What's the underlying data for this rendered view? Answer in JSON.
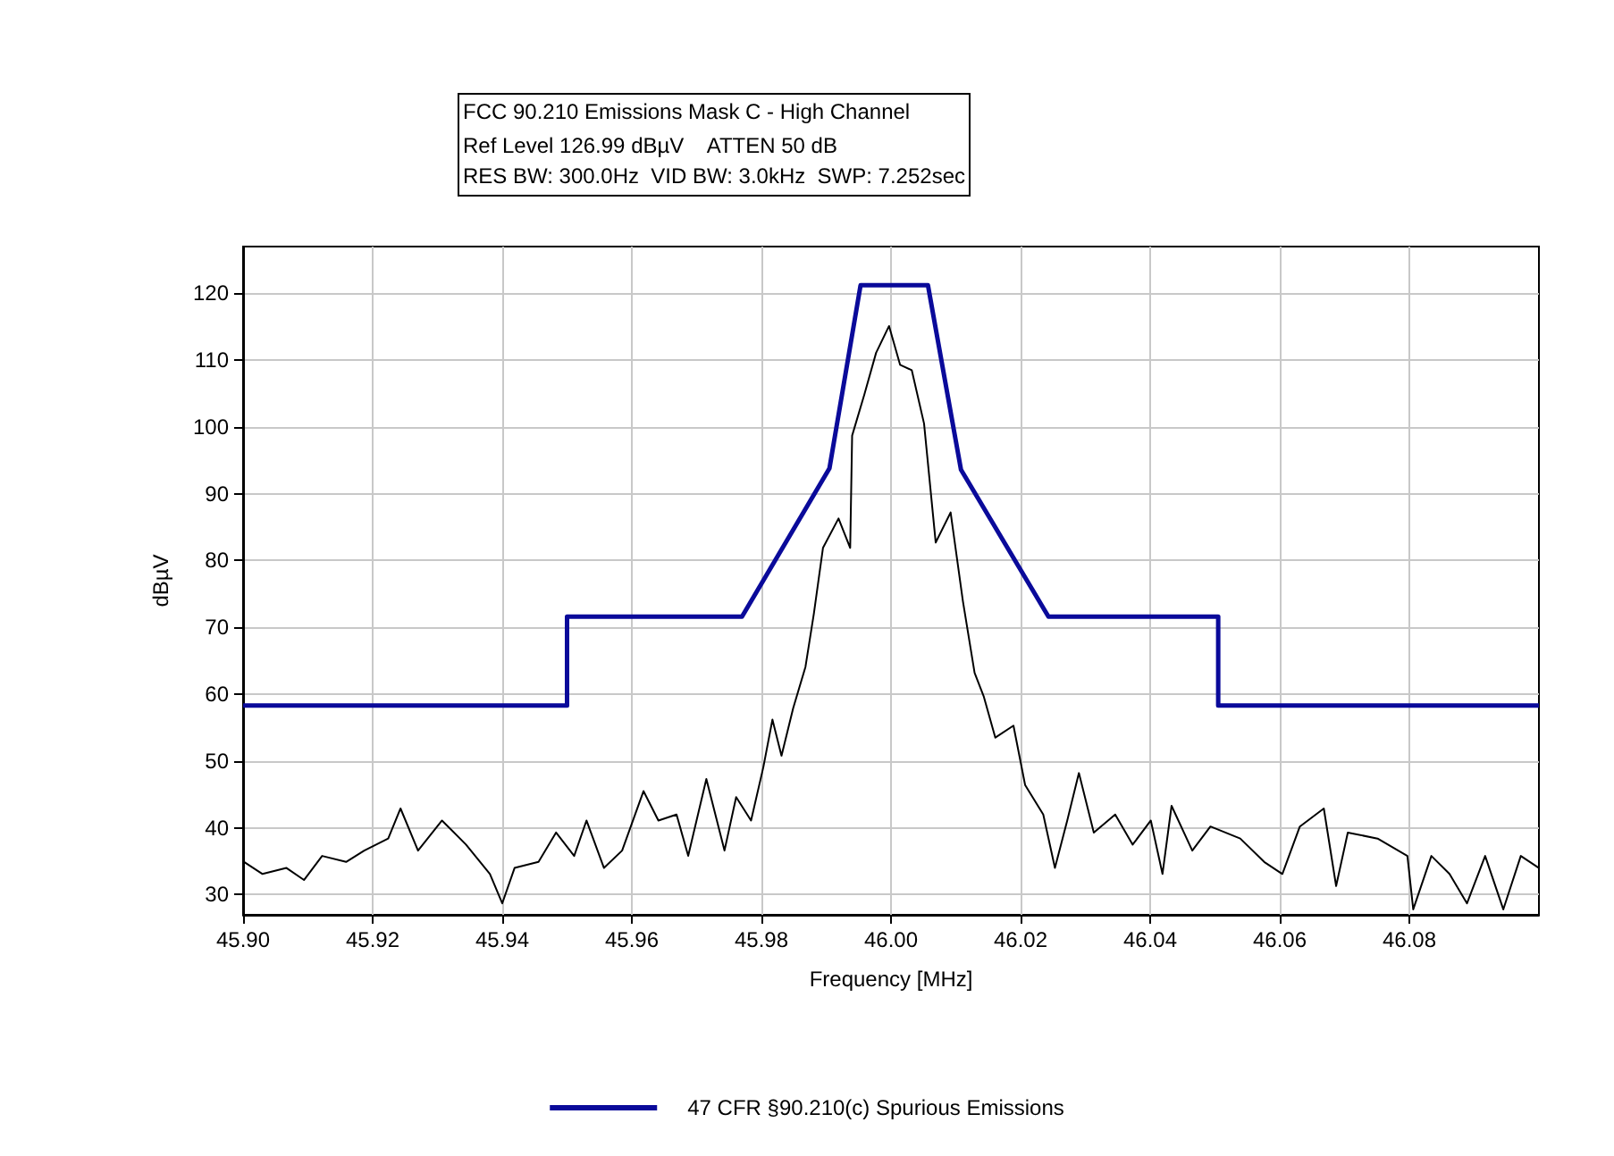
{
  "chart_data": {
    "type": "line",
    "title": "FCC 90.210 Emissions Mask C - High Channel",
    "subtitle": "Ref Level 126.99 dBµV    ATTEN 50 dB\nRES BW: 300.0Hz  VID BW: 3.0kHz  SWP: 7.252sec",
    "xlabel": "Frequency [MHz]",
    "ylabel": "dBµV",
    "xlim": [
      45.9,
      46.1
    ],
    "ylim": [
      26.99,
      126.99
    ],
    "xticks": [
      {
        "value": 45.9,
        "label": "45.90"
      },
      45.92,
      45.94,
      45.96,
      45.98,
      {
        "value": 46.0,
        "label": "46.00"
      },
      46.02,
      46.04,
      46.06,
      46.08
    ],
    "yticks": [
      30,
      40,
      50,
      60,
      70,
      80,
      90,
      100,
      110,
      120
    ],
    "grid": true,
    "legend": "bottom",
    "marker": "none",
    "line_style": "solid",
    "series": [
      {
        "color": "#000000",
        "x": [
          45.9,
          45.903,
          45.9067,
          45.9094,
          45.9122,
          45.9159,
          45.9187,
          45.9224,
          45.9243,
          45.927,
          45.9307,
          45.9344,
          45.9381,
          45.94,
          45.9419,
          45.9456,
          45.9483,
          45.9511,
          45.953,
          45.9557,
          45.9585,
          45.9618,
          45.9641,
          45.9669,
          45.9687,
          45.9715,
          45.9743,
          45.9761,
          45.9784,
          45.9803,
          45.9817,
          45.9831,
          45.9849,
          45.9868,
          45.9881,
          45.9895,
          45.9919,
          45.9937,
          45.994,
          45.9959,
          45.9977,
          45.9997,
          46.0014,
          46.0032,
          46.0051,
          46.0069,
          46.0092,
          46.0111,
          46.0129,
          46.0143,
          46.0161,
          46.0189,
          46.0207,
          46.0235,
          46.0253,
          46.0272,
          46.029,
          46.0313,
          46.0346,
          46.0373,
          46.0401,
          46.0419,
          46.0433,
          46.0465,
          46.0493,
          46.0539,
          46.0576,
          46.0604,
          46.0631,
          46.0668,
          46.0687,
          46.0705,
          46.0751,
          46.0797,
          46.0806,
          46.0834,
          46.0862,
          46.0889,
          46.0917,
          46.0945,
          46.0972,
          46.1
        ],
        "values": [
          35,
          33.1,
          34,
          32.2,
          35.8,
          34.9,
          36.6,
          38.4,
          42.9,
          36.6,
          41.1,
          37.5,
          33.1,
          28.7,
          34,
          34.9,
          39.3,
          35.8,
          41.1,
          34,
          36.6,
          45.5,
          41.1,
          42,
          35.8,
          47.3,
          36.6,
          44.6,
          41.1,
          49.1,
          56.2,
          50.8,
          57.9,
          64.1,
          72.1,
          81.9,
          86.3,
          81.9,
          98.7,
          104.9,
          111.1,
          115.1,
          109.3,
          108.5,
          100.5,
          82.7,
          87.2,
          73.9,
          63.2,
          59.7,
          53.5,
          55.3,
          46.4,
          42,
          34,
          41.1,
          48.2,
          39.3,
          42,
          37.5,
          41.1,
          33.1,
          43.3,
          36.6,
          40.2,
          38.4,
          34.9,
          33.1,
          40.2,
          42.9,
          31.3,
          39.3,
          38.4,
          35.8,
          27.8,
          35.8,
          33.1,
          28.7,
          35.8,
          27.8,
          35.8,
          34
        ]
      },
      {
        "name": "47 CFR §90.210(c) Spurious Emissions",
        "color": "#0a0a9a",
        "x": [
          45.9,
          45.95,
          45.95,
          45.977,
          45.9905,
          45.9953,
          46.0057,
          46.0108,
          46.0243,
          46.0505,
          46.0505,
          46.1
        ],
        "values": [
          58.3,
          58.3,
          71.6,
          71.6,
          93.8,
          121.2,
          121.2,
          93.6,
          71.6,
          71.6,
          58.3,
          58.3
        ]
      }
    ]
  }
}
